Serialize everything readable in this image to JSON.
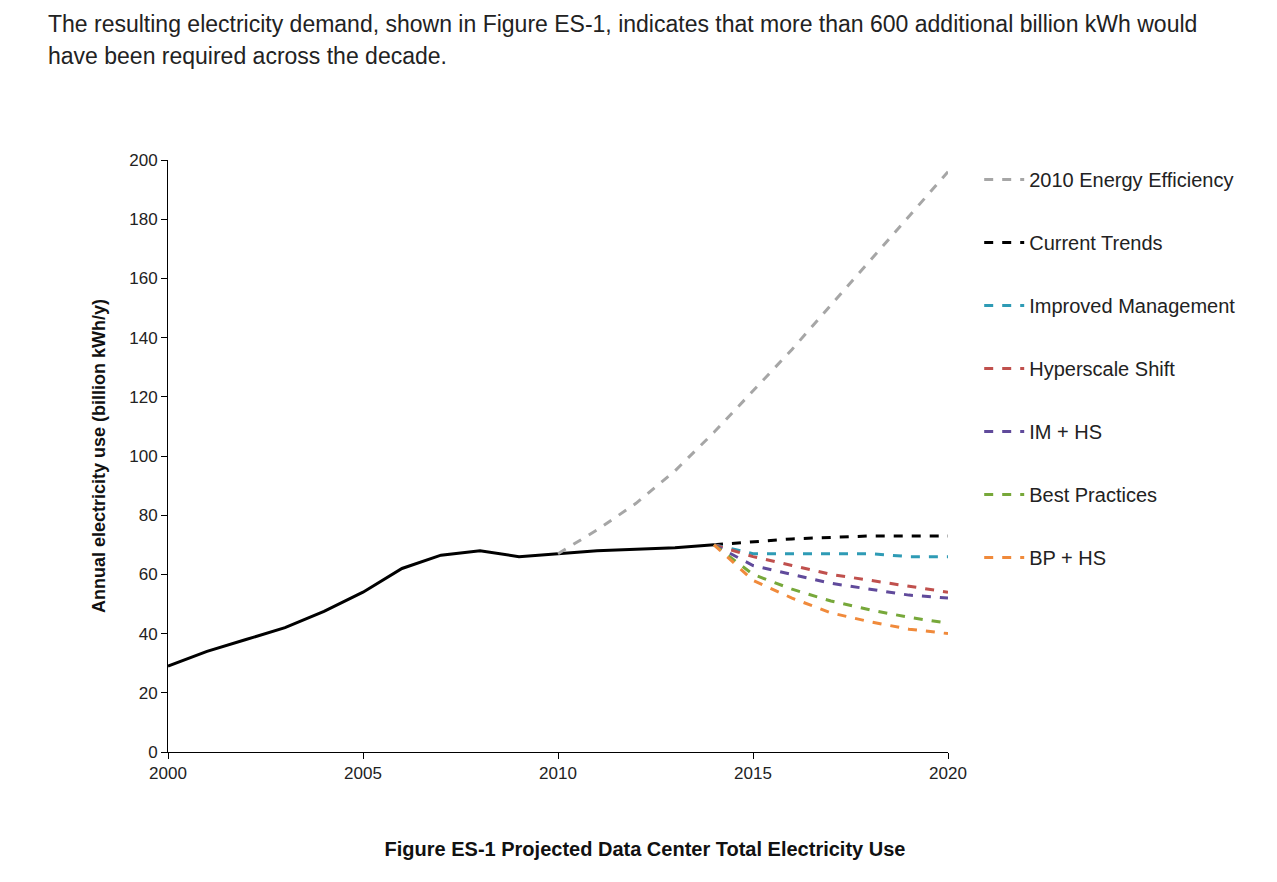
{
  "chart_data": {
    "type": "line",
    "title": "Figure ES-1 Projected Data Center Total Electricity Use",
    "subtitle": "The resulting electricity demand, shown in Figure ES-1, indicates that more than 600 additional billion kWh would have been required across the decade.",
    "y_label": "Annual electricity use (billion kWh/y)",
    "x": [
      2000,
      2001,
      2002,
      2003,
      2004,
      2005,
      2006,
      2007,
      2008,
      2009,
      2010,
      2011,
      2012,
      2013,
      2014,
      2015,
      2016,
      2017,
      2018,
      2019,
      2020
    ],
    "series": [
      {
        "color": "#000000",
        "line_style": "solid",
        "values": [
          29,
          34,
          38,
          42,
          47.5,
          54,
          62,
          66.5,
          68,
          66,
          67,
          68,
          68.5,
          69,
          70,
          null,
          null,
          null,
          null,
          null,
          null
        ]
      },
      {
        "name": "2010 Energy Efficiency",
        "color": "#a6a6a6",
        "line_style": "dash",
        "values": [
          null,
          null,
          null,
          null,
          null,
          null,
          null,
          null,
          null,
          null,
          67,
          75,
          84,
          95,
          108,
          122,
          136,
          151,
          166,
          181,
          196
        ]
      },
      {
        "name": "Current Trends",
        "color": "#000000",
        "line_style": "dash",
        "values": [
          null,
          null,
          null,
          null,
          null,
          null,
          null,
          null,
          null,
          null,
          null,
          null,
          null,
          null,
          70,
          71,
          72,
          72.5,
          73,
          73,
          73
        ]
      },
      {
        "name": "Improved Management",
        "color": "#2e9bb5",
        "line_style": "dash",
        "values": [
          null,
          null,
          null,
          null,
          null,
          null,
          null,
          null,
          null,
          null,
          null,
          null,
          null,
          null,
          70,
          67,
          67,
          67,
          67,
          66,
          66
        ]
      },
      {
        "name": "Hyperscale Shift",
        "color": "#c0504d",
        "line_style": "dash",
        "values": [
          null,
          null,
          null,
          null,
          null,
          null,
          null,
          null,
          null,
          null,
          null,
          null,
          null,
          null,
          70,
          66,
          63,
          60,
          58,
          56,
          54
        ]
      },
      {
        "name": "IM + HS",
        "color": "#604a9b",
        "line_style": "dash",
        "values": [
          null,
          null,
          null,
          null,
          null,
          null,
          null,
          null,
          null,
          null,
          null,
          null,
          null,
          null,
          70,
          63,
          60,
          57,
          55,
          53,
          52
        ]
      },
      {
        "name": "Best Practices",
        "color": "#77a83a",
        "line_style": "dash",
        "values": [
          null,
          null,
          null,
          null,
          null,
          null,
          null,
          null,
          null,
          null,
          null,
          null,
          null,
          null,
          70,
          60,
          55,
          51,
          48,
          45.5,
          43.5
        ]
      },
      {
        "name": "BP + HS",
        "color": "#f08a3b",
        "line_style": "dash",
        "values": [
          null,
          null,
          null,
          null,
          null,
          null,
          null,
          null,
          null,
          null,
          null,
          null,
          null,
          null,
          70,
          58,
          52,
          47,
          44,
          41.5,
          40
        ]
      }
    ],
    "xlim": [
      2000,
      2020
    ],
    "xticks": [
      2000,
      2005,
      2010,
      2015,
      2020
    ],
    "ylim": [
      0,
      200
    ],
    "yticks": [
      0,
      20,
      40,
      60,
      80,
      100,
      120,
      140,
      160,
      180,
      200
    ],
    "grid": false,
    "legend": "right"
  }
}
